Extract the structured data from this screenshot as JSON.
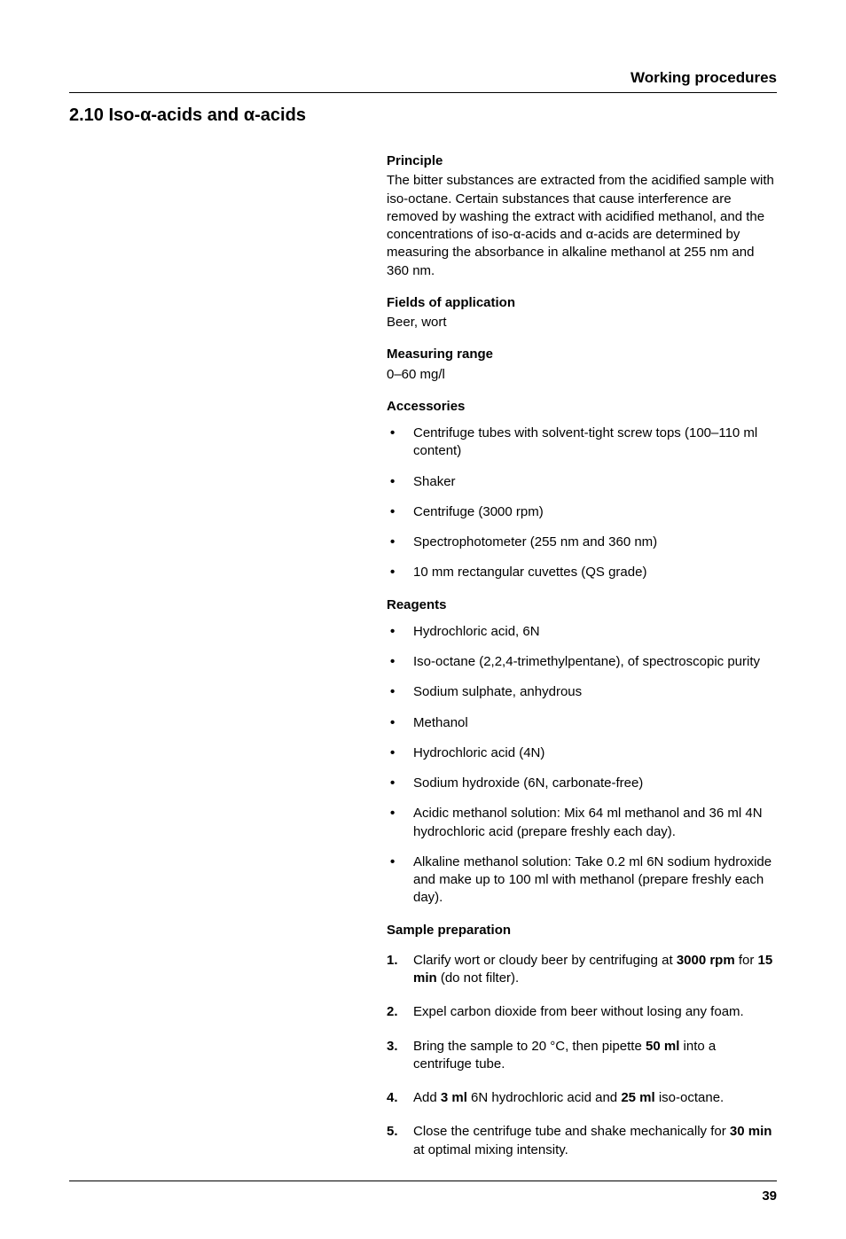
{
  "header": {
    "right_title": "Working procedures"
  },
  "section": {
    "number": "2.10",
    "title_prefix": "Iso-",
    "alpha": "α",
    "title_mid": "-acids and ",
    "title_suffix": "-acids"
  },
  "principle": {
    "heading": "Principle",
    "text_before": "The bitter substances are extracted from the acidified sample with iso-octane. Certain substances that cause interference are removed by washing the extract with acidified methanol, and the concentrations of iso-",
    "alpha1": "α",
    "text_mid": "-acids and ",
    "alpha2": "α",
    "text_after": "-acids are determined by measuring the absorbance in alkaline methanol at 255 nm and 360 nm."
  },
  "fields": {
    "heading": "Fields of application",
    "text": "Beer, wort"
  },
  "range": {
    "heading": "Measuring range",
    "text": "0–60 mg/l"
  },
  "accessories": {
    "heading": "Accessories",
    "items": [
      "Centrifuge tubes with solvent-tight screw tops (100–110 ml content)",
      "Shaker",
      "Centrifuge (3000 rpm)",
      "Spectrophotometer (255 nm and 360 nm)",
      "10 mm rectangular cuvettes (QS grade)"
    ]
  },
  "reagents": {
    "heading": "Reagents",
    "items": [
      "Hydrochloric acid, 6N",
      "Iso-octane (2,2,4-trimethylpentane), of spectroscopic purity",
      "Sodium sulphate, anhydrous",
      "Methanol",
      "Hydrochloric acid (4N)",
      "Sodium hydroxide (6N, carbonate-free)",
      "Acidic methanol solution: Mix 64 ml methanol and 36 ml 4N hydrochloric acid (prepare freshly each day).",
      "Alkaline methanol solution: Take 0.2 ml 6N sodium hydroxide and make up to 100 ml with methanol (prepare freshly each day)."
    ]
  },
  "sample_prep": {
    "heading": "Sample preparation",
    "steps": {
      "s1a": "Clarify wort or cloudy beer by centrifuging at ",
      "s1b": "3000 rpm",
      "s1c": " for ",
      "s1d": "15 min",
      "s1e": " (do not filter).",
      "s2": "Expel carbon dioxide from beer without losing any foam.",
      "s3a": "Bring the sample to 20 °C, then pipette ",
      "s3b": "50 ml",
      "s3c": " into a centrifuge tube.",
      "s4a": "Add ",
      "s4b": "3 ml",
      "s4c": " 6N hydrochloric acid and ",
      "s4d": "25 ml",
      "s4e": " iso-octane.",
      "s5a": "Close the centrifuge tube and shake mechanically for ",
      "s5b": "30 min",
      "s5c": " at optimal mixing intensity."
    }
  },
  "footer": {
    "page_number": "39"
  }
}
